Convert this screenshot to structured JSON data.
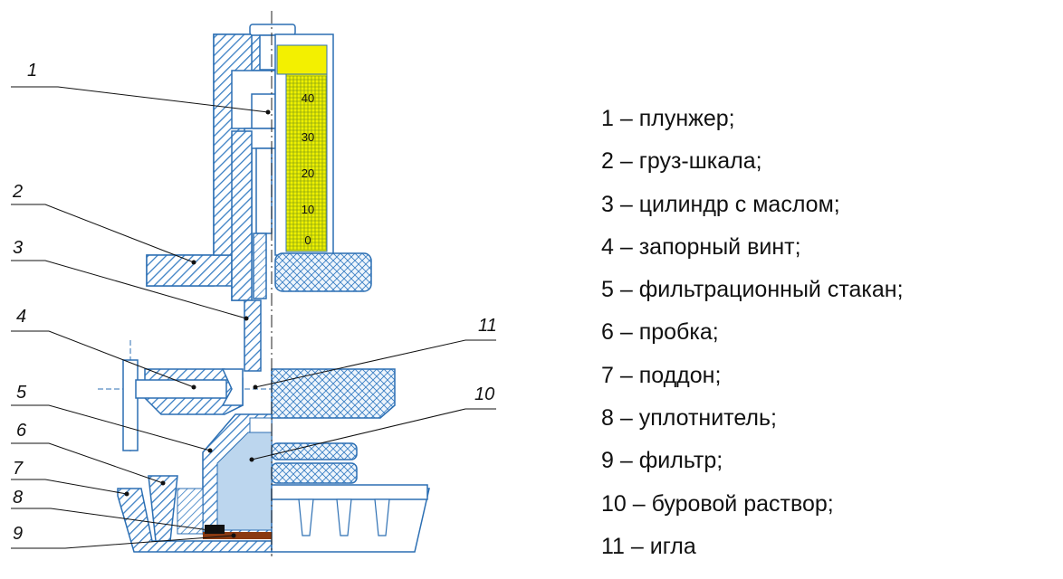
{
  "callouts": [
    "1",
    "2",
    "3",
    "4",
    "5",
    "6",
    "7",
    "8",
    "9",
    "10",
    "11"
  ],
  "scale_ticks": [
    "40",
    "30",
    "20",
    "10",
    "0"
  ],
  "legend": [
    "1 – плунжер;",
    "2 – груз-шкала;",
    "3 – цилиндр с маслом;",
    "4 – запорный винт;",
    "5 – фильтрационный стакан;",
    "6 – пробка;",
    "7 – поддон;",
    "8 – уплотнитель;",
    "9 – фильтр;",
    "10 – буровой раствор;",
    "11 – игла"
  ],
  "colors": {
    "outline": "#2c6fb3",
    "hatch": "#3a7fc4",
    "scale_yellow": "#eef000",
    "scale_top": "#f3f000",
    "fluid": "#bcd6ee",
    "filter": "#8a3a12",
    "seal": "#111111"
  }
}
